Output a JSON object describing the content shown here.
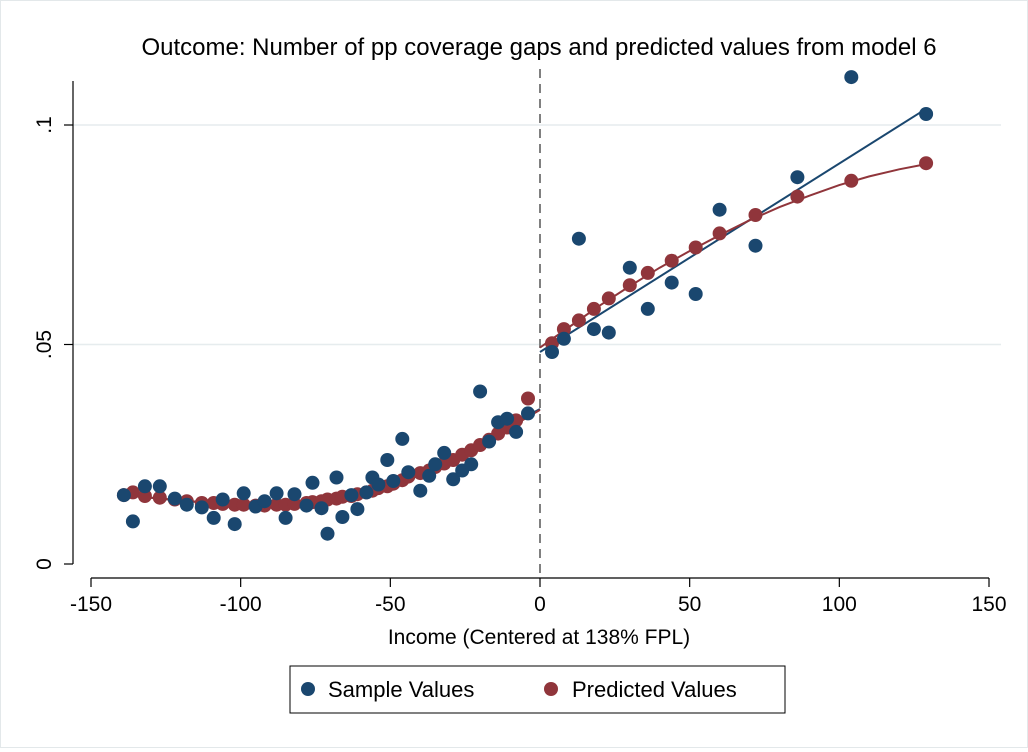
{
  "chart_data": {
    "type": "scatter",
    "title": "Outcome: Number of pp coverage gaps and predicted values from model 6",
    "xlabel": "Income (Centered at 138% FPL)",
    "ylabel": "",
    "xlim": [
      -150,
      150
    ],
    "ylim": [
      0,
      0.11
    ],
    "x_ticks": [
      -150,
      -100,
      -50,
      0,
      50,
      100,
      150
    ],
    "x_tick_labels": [
      "-150",
      "-100",
      "-50",
      "0",
      "50",
      "100",
      "150"
    ],
    "y_ticks": [
      0,
      0.05,
      0.1
    ],
    "y_tick_labels": [
      "0",
      ".05",
      ".1"
    ],
    "grid": "horizontal",
    "cutoff_line": {
      "x": 0,
      "style": "dashed"
    },
    "legend": {
      "position": "bottom"
    },
    "series": [
      {
        "name": "Sample Values",
        "color": "#1a476f",
        "points": [
          [
            -139,
            0.0157
          ],
          [
            -136,
            0.0097
          ],
          [
            -132,
            0.0177
          ],
          [
            -127,
            0.0177
          ],
          [
            -122,
            0.0149
          ],
          [
            -118,
            0.0135
          ],
          [
            -113,
            0.0129
          ],
          [
            -109,
            0.0105
          ],
          [
            -106,
            0.0147
          ],
          [
            -102,
            0.0091
          ],
          [
            -99,
            0.0161
          ],
          [
            -95,
            0.0131
          ],
          [
            -92,
            0.0143
          ],
          [
            -88,
            0.0161
          ],
          [
            -85,
            0.0105
          ],
          [
            -82,
            0.0159
          ],
          [
            -78,
            0.0133
          ],
          [
            -76,
            0.0185
          ],
          [
            -73,
            0.0127
          ],
          [
            -71,
            0.0069
          ],
          [
            -68,
            0.0197
          ],
          [
            -66,
            0.0107
          ],
          [
            -63,
            0.0157
          ],
          [
            -61,
            0.0125
          ],
          [
            -58,
            0.0163
          ],
          [
            -56,
            0.0197
          ],
          [
            -54,
            0.0181
          ],
          [
            -51,
            0.0237
          ],
          [
            -49,
            0.0189
          ],
          [
            -46,
            0.0285
          ],
          [
            -44,
            0.0209
          ],
          [
            -40,
            0.0167
          ],
          [
            -37,
            0.0201
          ],
          [
            -35,
            0.0227
          ],
          [
            -32,
            0.0253
          ],
          [
            -29,
            0.0193
          ],
          [
            -26,
            0.0213
          ],
          [
            -23,
            0.0227
          ],
          [
            -20,
            0.0393
          ],
          [
            -17,
            0.0279
          ],
          [
            -14,
            0.0323
          ],
          [
            -11,
            0.0331
          ],
          [
            -8,
            0.0301
          ],
          [
            -4,
            0.0343
          ],
          [
            4,
            0.0483
          ],
          [
            8,
            0.0513
          ],
          [
            13,
            0.0741
          ],
          [
            18,
            0.0535
          ],
          [
            23,
            0.0527
          ],
          [
            30,
            0.0675
          ],
          [
            36,
            0.0581
          ],
          [
            44,
            0.0641
          ],
          [
            52,
            0.0615
          ],
          [
            60,
            0.0807
          ],
          [
            72,
            0.0725
          ],
          [
            86,
            0.0881
          ],
          [
            104,
            0.1109
          ],
          [
            129,
            0.1025
          ]
        ],
        "fit_line": [
          [
            0,
            0.0483
          ],
          [
            129,
            0.1037
          ]
        ],
        "fit_line_left": [
          [
            -138,
            0.0158
          ],
          [
            -130,
            0.0151
          ],
          [
            -120,
            0.0144
          ],
          [
            -110,
            0.0139
          ],
          [
            -100,
            0.0137
          ],
          [
            -90,
            0.0137
          ],
          [
            -80,
            0.0139
          ],
          [
            -70,
            0.0145
          ],
          [
            -60,
            0.0157
          ],
          [
            -50,
            0.0175
          ],
          [
            -40,
            0.0203
          ],
          [
            -30,
            0.0237
          ],
          [
            -20,
            0.0277
          ],
          [
            -10,
            0.0317
          ],
          [
            0,
            0.0353
          ]
        ]
      },
      {
        "name": "Predicted Values",
        "color": "#90353b",
        "points": [
          [
            -139,
            0.0157
          ],
          [
            -136,
            0.0163
          ],
          [
            -132,
            0.0155
          ],
          [
            -127,
            0.0151
          ],
          [
            -122,
            0.0147
          ],
          [
            -118,
            0.0143
          ],
          [
            -113,
            0.0139
          ],
          [
            -109,
            0.0139
          ],
          [
            -106,
            0.0137
          ],
          [
            -102,
            0.0135
          ],
          [
            -99,
            0.0135
          ],
          [
            -95,
            0.0133
          ],
          [
            -92,
            0.0133
          ],
          [
            -88,
            0.0135
          ],
          [
            -85,
            0.0135
          ],
          [
            -82,
            0.0137
          ],
          [
            -78,
            0.0139
          ],
          [
            -76,
            0.0141
          ],
          [
            -73,
            0.0143
          ],
          [
            -71,
            0.0147
          ],
          [
            -68,
            0.0149
          ],
          [
            -66,
            0.0153
          ],
          [
            -63,
            0.0155
          ],
          [
            -61,
            0.0159
          ],
          [
            -58,
            0.0163
          ],
          [
            -56,
            0.0167
          ],
          [
            -54,
            0.0173
          ],
          [
            -51,
            0.0177
          ],
          [
            -49,
            0.0183
          ],
          [
            -46,
            0.0191
          ],
          [
            -44,
            0.0199
          ],
          [
            -40,
            0.0207
          ],
          [
            -37,
            0.0213
          ],
          [
            -35,
            0.0221
          ],
          [
            -32,
            0.0229
          ],
          [
            -29,
            0.0237
          ],
          [
            -26,
            0.0249
          ],
          [
            -23,
            0.0259
          ],
          [
            -20,
            0.0271
          ],
          [
            -17,
            0.0283
          ],
          [
            -14,
            0.0297
          ],
          [
            -11,
            0.0311
          ],
          [
            -8,
            0.0327
          ],
          [
            -4,
            0.0377
          ],
          [
            4,
            0.0503
          ],
          [
            8,
            0.0535
          ],
          [
            13,
            0.0555
          ],
          [
            18,
            0.0581
          ],
          [
            23,
            0.0605
          ],
          [
            30,
            0.0635
          ],
          [
            36,
            0.0663
          ],
          [
            44,
            0.0691
          ],
          [
            52,
            0.0721
          ],
          [
            60,
            0.0753
          ],
          [
            72,
            0.0795
          ],
          [
            86,
            0.0837
          ],
          [
            104,
            0.0873
          ],
          [
            129,
            0.0913
          ]
        ],
        "fit_line": [
          [
            0,
            0.0493
          ],
          [
            10,
            0.0541
          ],
          [
            20,
            0.0589
          ],
          [
            30,
            0.0633
          ],
          [
            40,
            0.0675
          ],
          [
            50,
            0.0713
          ],
          [
            60,
            0.0749
          ],
          [
            70,
            0.0783
          ],
          [
            80,
            0.0813
          ],
          [
            90,
            0.0839
          ],
          [
            100,
            0.0863
          ],
          [
            110,
            0.0883
          ],
          [
            120,
            0.0899
          ],
          [
            129,
            0.0911
          ]
        ],
        "fit_line_left": [
          [
            -139,
            0.0157
          ],
          [
            -130,
            0.0151
          ],
          [
            -120,
            0.0145
          ],
          [
            -110,
            0.0139
          ],
          [
            -100,
            0.0135
          ],
          [
            -90,
            0.0134
          ],
          [
            -80,
            0.0138
          ],
          [
            -70,
            0.0145
          ],
          [
            -60,
            0.0157
          ],
          [
            -50,
            0.0177
          ],
          [
            -40,
            0.0203
          ],
          [
            -30,
            0.0235
          ],
          [
            -20,
            0.0271
          ],
          [
            -10,
            0.0311
          ],
          [
            0,
            0.0351
          ]
        ]
      }
    ]
  }
}
